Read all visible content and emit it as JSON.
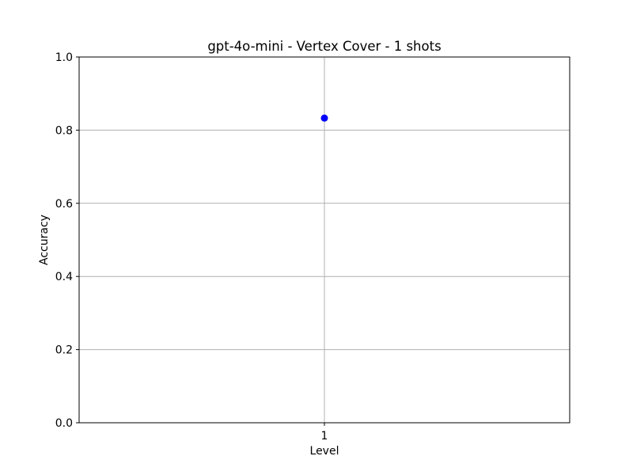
{
  "chart_data": {
    "type": "scatter",
    "title": "gpt-4o-mini - Vertex Cover - 1 shots",
    "xlabel": "Level",
    "ylabel": "Accuracy",
    "x_ticks": [
      "1"
    ],
    "y_ticks": [
      "0.0",
      "0.2",
      "0.4",
      "0.6",
      "0.8",
      "1.0"
    ],
    "ylim": [
      0,
      1
    ],
    "xlim": [
      0,
      2
    ],
    "grid": true,
    "series": [
      {
        "color": "#0000ff",
        "x": [
          1
        ],
        "y": [
          0.833
        ]
      }
    ]
  }
}
